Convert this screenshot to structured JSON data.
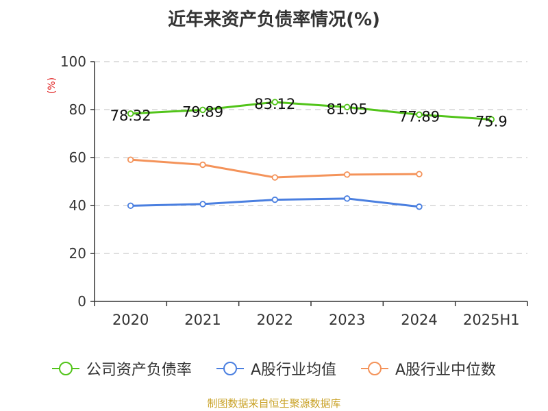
{
  "chart_data": {
    "type": "line",
    "title": "近年来资产负债率情况(%)",
    "ylabel": "(%)",
    "xlabel": "",
    "ylim": [
      0,
      100
    ],
    "yticks": [
      0,
      20,
      40,
      60,
      80,
      100
    ],
    "categories": [
      "2020",
      "2021",
      "2022",
      "2023",
      "2024",
      "2025H1"
    ],
    "series": [
      {
        "name": "公司资产负债率",
        "color": "#52c41a",
        "values": [
          78.32,
          79.89,
          83.12,
          81.05,
          77.89,
          75.9
        ],
        "labels": [
          "78.32",
          "79.89",
          "83.12",
          "81.05",
          "77.89",
          "75.9"
        ]
      },
      {
        "name": "A股行业均值",
        "color": "#4a7fe0",
        "values": [
          39.9,
          40.6,
          42.4,
          42.9,
          39.5,
          null
        ]
      },
      {
        "name": "A股行业中位数",
        "color": "#f4935a",
        "values": [
          59.1,
          57.0,
          51.7,
          52.9,
          53.1,
          null
        ]
      }
    ],
    "grid": true,
    "legend_position": "bottom"
  },
  "source": "制图数据来自恒生聚源数据库"
}
